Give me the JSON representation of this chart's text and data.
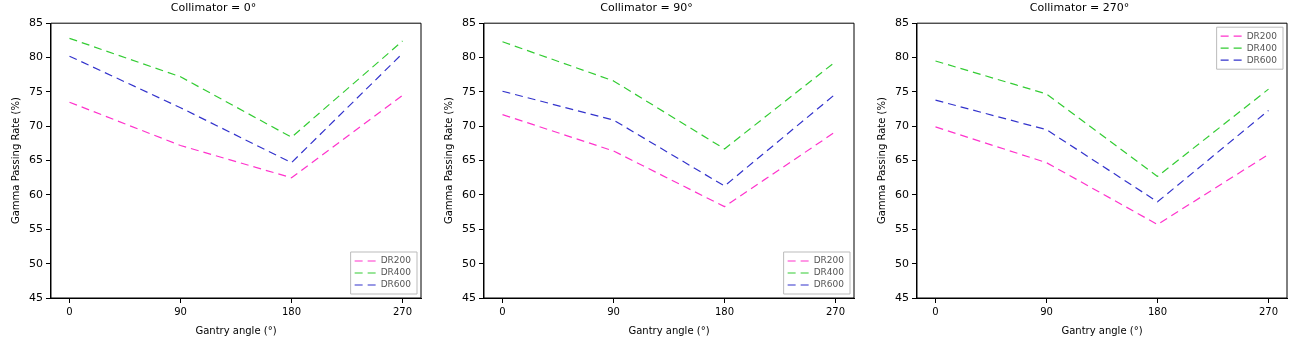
{
  "chart_data": [
    {
      "type": "line",
      "title": "Collimator = 0°",
      "xlabel": "Gantry angle (°)",
      "ylabel": "Gamma Passing Rate (%)",
      "x": [
        0,
        90,
        180,
        270
      ],
      "xlim": [
        -15,
        285
      ],
      "xticks": [
        0,
        90,
        180,
        270
      ],
      "ylim": [
        45,
        85
      ],
      "yticks": [
        45,
        50,
        55,
        60,
        65,
        70,
        75,
        80,
        85
      ],
      "grid": false,
      "legend": "bottom right",
      "line_style": "dashed",
      "marker": "none",
      "series": [
        {
          "name": "DR200",
          "color": "#ff33cc",
          "values": [
            73.5,
            67.2,
            62.5,
            74.5
          ]
        },
        {
          "name": "DR400",
          "color": "#33cc33",
          "values": [
            82.8,
            77.2,
            68.4,
            82.4
          ]
        },
        {
          "name": "DR600",
          "color": "#3333cc",
          "values": [
            80.2,
            72.7,
            64.7,
            80.6
          ]
        }
      ]
    },
    {
      "type": "line",
      "title": "Collimator = 90°",
      "xlabel": "Gantry angle (°)",
      "ylabel": "Gamma Passing Rate (%)",
      "x": [
        0,
        90,
        180,
        270
      ],
      "xlim": [
        -15,
        285
      ],
      "xticks": [
        0,
        90,
        180,
        270
      ],
      "ylim": [
        45,
        85
      ],
      "yticks": [
        45,
        50,
        55,
        60,
        65,
        70,
        75,
        80,
        85
      ],
      "grid": false,
      "legend": "bottom right",
      "line_style": "dashed",
      "marker": "none",
      "series": [
        {
          "name": "DR200",
          "color": "#ff33cc",
          "values": [
            71.7,
            66.4,
            58.3,
            69.2
          ]
        },
        {
          "name": "DR400",
          "color": "#33cc33",
          "values": [
            82.3,
            76.6,
            66.7,
            79.4
          ]
        },
        {
          "name": "DR600",
          "color": "#3333cc",
          "values": [
            75.1,
            70.9,
            61.3,
            74.7
          ]
        }
      ]
    },
    {
      "type": "line",
      "title": "Collimator = 270°",
      "xlabel": "Gantry angle (°)",
      "ylabel": "Gamma Passing Rate (%)",
      "x": [
        0,
        90,
        180,
        270
      ],
      "xlim": [
        -15,
        285
      ],
      "xticks": [
        0,
        90,
        180,
        270
      ],
      "ylim": [
        45,
        85
      ],
      "yticks": [
        45,
        50,
        55,
        60,
        65,
        70,
        75,
        80,
        85
      ],
      "grid": false,
      "legend": "top right",
      "line_style": "dashed",
      "marker": "none",
      "series": [
        {
          "name": "DR200",
          "color": "#ff33cc",
          "values": [
            69.9,
            64.7,
            55.7,
            65.9
          ]
        },
        {
          "name": "DR400",
          "color": "#33cc33",
          "values": [
            79.5,
            74.7,
            62.7,
            75.4
          ]
        },
        {
          "name": "DR600",
          "color": "#3333cc",
          "values": [
            73.8,
            69.5,
            59.0,
            72.3
          ]
        }
      ]
    }
  ]
}
